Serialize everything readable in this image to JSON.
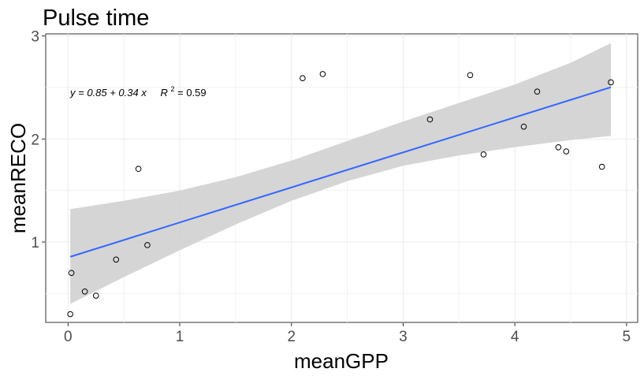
{
  "chart_data": {
    "type": "scatter",
    "title": "Pulse time",
    "xlabel": "meanGPP",
    "ylabel": "meanRECO",
    "xlim": [
      -0.2,
      5.1
    ],
    "ylim": [
      0.22,
      3.02
    ],
    "x_ticks": [
      0,
      1,
      2,
      3,
      4,
      5
    ],
    "y_ticks": [
      1,
      2,
      3
    ],
    "x_tick_labels": [
      "0",
      "1",
      "2",
      "3",
      "4",
      "5"
    ],
    "y_tick_labels": [
      "1",
      "2",
      "3"
    ],
    "grid": true,
    "points": [
      {
        "x": 0.02,
        "y": 0.3
      },
      {
        "x": 0.03,
        "y": 0.7
      },
      {
        "x": 0.15,
        "y": 0.52
      },
      {
        "x": 0.25,
        "y": 0.48
      },
      {
        "x": 0.43,
        "y": 0.83
      },
      {
        "x": 0.63,
        "y": 1.71
      },
      {
        "x": 0.71,
        "y": 0.97
      },
      {
        "x": 2.1,
        "y": 2.59
      },
      {
        "x": 2.28,
        "y": 2.63
      },
      {
        "x": 3.24,
        "y": 2.19
      },
      {
        "x": 3.6,
        "y": 2.62
      },
      {
        "x": 3.72,
        "y": 1.85
      },
      {
        "x": 4.08,
        "y": 2.12
      },
      {
        "x": 4.2,
        "y": 2.46
      },
      {
        "x": 4.39,
        "y": 1.92
      },
      {
        "x": 4.46,
        "y": 1.88
      },
      {
        "x": 4.78,
        "y": 1.73
      },
      {
        "x": 4.86,
        "y": 2.55
      }
    ],
    "fit": {
      "intercept": 0.85,
      "slope": 0.34,
      "x_range": [
        0.02,
        4.86
      ],
      "ci_band": {
        "x": [
          0.02,
          0.5,
          1.0,
          1.5,
          2.0,
          2.5,
          3.0,
          3.5,
          4.0,
          4.5,
          4.86
        ],
        "lower": [
          0.4,
          0.66,
          0.92,
          1.17,
          1.4,
          1.59,
          1.74,
          1.84,
          1.92,
          1.99,
          2.03
        ],
        "upper": [
          1.32,
          1.4,
          1.5,
          1.63,
          1.79,
          1.98,
          2.17,
          2.35,
          2.53,
          2.74,
          2.93
        ]
      },
      "line_color": "#3366ff",
      "band_color": "#d3d3d3"
    },
    "annotation": {
      "x": 0.02,
      "y": 2.45,
      "equation": "y = 0.85 + 0.34 x",
      "r2_label": "R",
      "r2_sup": "2",
      "r2_value": " = 0.59"
    }
  }
}
